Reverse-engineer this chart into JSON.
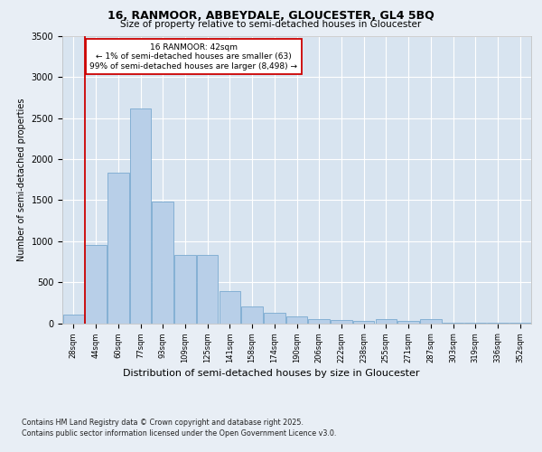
{
  "title1": "16, RANMOOR, ABBEYDALE, GLOUCESTER, GL4 5BQ",
  "title2": "Size of property relative to semi-detached houses in Gloucester",
  "xlabel": "Distribution of semi-detached houses by size in Gloucester",
  "ylabel": "Number of semi-detached properties",
  "categories": [
    "28sqm",
    "44sqm",
    "60sqm",
    "77sqm",
    "93sqm",
    "109sqm",
    "125sqm",
    "141sqm",
    "158sqm",
    "174sqm",
    "190sqm",
    "206sqm",
    "222sqm",
    "238sqm",
    "255sqm",
    "271sqm",
    "287sqm",
    "303sqm",
    "319sqm",
    "336sqm",
    "352sqm"
  ],
  "values": [
    100,
    950,
    1830,
    2620,
    1480,
    830,
    830,
    390,
    200,
    130,
    80,
    55,
    40,
    30,
    45,
    25,
    50,
    10,
    10,
    10,
    10
  ],
  "bar_color": "#b8cfe8",
  "bar_edge_color": "#7aaad0",
  "vline_color": "#cc0000",
  "vline_x_index": 0.5,
  "annotation_title": "16 RANMOOR: 42sqm",
  "annotation_line1": "← 1% of semi-detached houses are smaller (63)",
  "annotation_line2": "99% of semi-detached houses are larger (8,498) →",
  "annotation_box_color": "white",
  "annotation_box_edge": "#cc0000",
  "ylim": [
    0,
    3500
  ],
  "yticks": [
    0,
    500,
    1000,
    1500,
    2000,
    2500,
    3000,
    3500
  ],
  "background_color": "#e8eef5",
  "plot_background": "#d8e4f0",
  "footer1": "Contains HM Land Registry data © Crown copyright and database right 2025.",
  "footer2": "Contains public sector information licensed under the Open Government Licence v3.0."
}
